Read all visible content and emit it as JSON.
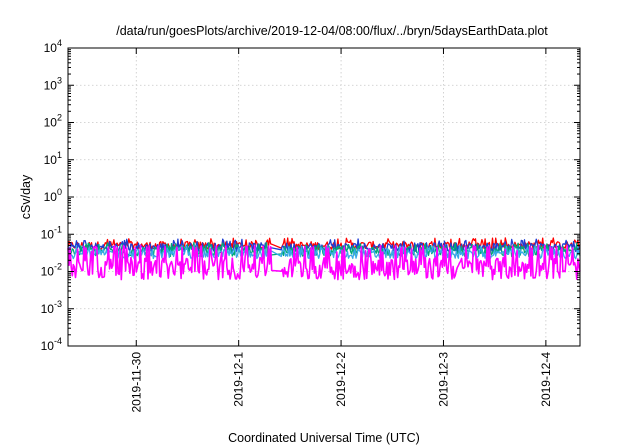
{
  "chart_data": {
    "type": "line",
    "title": "/data/run/goesPlots/archive/2019-12-04/08:00/flux/../bryn/5daysEarthData.plot",
    "xlabel": "Coordinated Universal Time (UTC)",
    "ylabel": "cSv/day",
    "yscale": "log",
    "ylim": [
      0.0001,
      10000
    ],
    "y_ticks": [
      {
        "value": 0.0001,
        "base": "10",
        "exp": "-4"
      },
      {
        "value": 0.001,
        "base": "10",
        "exp": "-3"
      },
      {
        "value": 0.01,
        "base": "10",
        "exp": "-2"
      },
      {
        "value": 0.1,
        "base": "10",
        "exp": "-1"
      },
      {
        "value": 1,
        "base": "10",
        "exp": "0"
      },
      {
        "value": 10,
        "base": "10",
        "exp": "1"
      },
      {
        "value": 100,
        "base": "10",
        "exp": "2"
      },
      {
        "value": 1000,
        "base": "10",
        "exp": "3"
      },
      {
        "value": 10000,
        "base": "10",
        "exp": "4"
      }
    ],
    "xlim": [
      "2019-11-29 08:00",
      "2019-12-04 08:00"
    ],
    "x_ticks": [
      "2019-11-30",
      "2019-12-1",
      "2019-12-2",
      "2019-12-3",
      "2019-12-4"
    ],
    "grid": true,
    "legend": "none",
    "gap": {
      "start": "2019-12-01 08:00",
      "end": "2019-12-01 10:00"
    },
    "series": [
      {
        "color": "#ff0000",
        "median": 0.05,
        "max": 0.08,
        "min": 0.035
      },
      {
        "color": "#1e3dd4",
        "median": 0.045,
        "max": 0.075,
        "min": 0.03
      },
      {
        "color": "#00a878",
        "median": 0.035,
        "max": 0.06,
        "min": 0.02
      },
      {
        "color": "#38a9e8",
        "median": 0.03,
        "max": 0.05,
        "min": 0.018
      },
      {
        "color": "#ff00ff",
        "median": 0.012,
        "max": 0.05,
        "min": 0.005
      }
    ]
  }
}
